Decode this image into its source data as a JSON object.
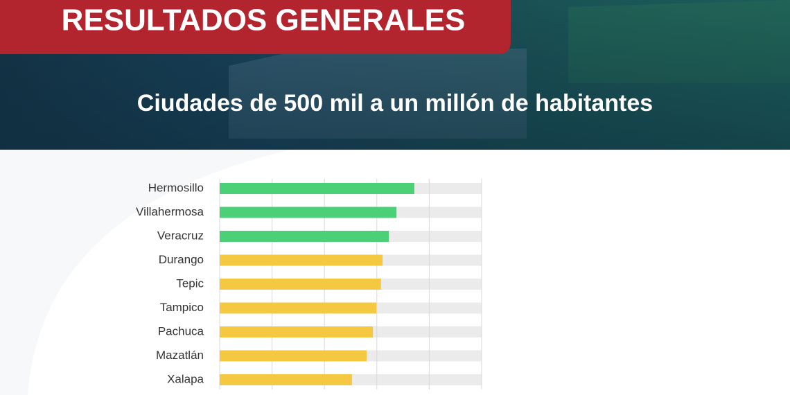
{
  "chart_data": {
    "type": "hbar",
    "title": "RESULTADOS GENERALES",
    "subtitle": "Ciudades de 500 mil a un millón de habitantes",
    "categories": [
      "Hermosillo",
      "Villahermosa",
      "Veracruz",
      "Durango",
      "Tepic",
      "Tampico",
      "Pachuca",
      "Mazatlán",
      "Xalapa"
    ],
    "values": [
      74.3,
      67.5,
      64.6,
      62.2,
      61.6,
      59.8,
      58.5,
      56.1,
      50.5
    ],
    "colors": [
      "#4cd077",
      "#4cd077",
      "#4cd077",
      "#f5c842",
      "#f5c842",
      "#f5c842",
      "#f5c842",
      "#f5c842",
      "#f5c842"
    ],
    "track_color": "#ebebeb",
    "xlim": [
      0,
      100
    ],
    "xticks": [
      0,
      20,
      40,
      60,
      80,
      100
    ],
    "grid": true
  }
}
